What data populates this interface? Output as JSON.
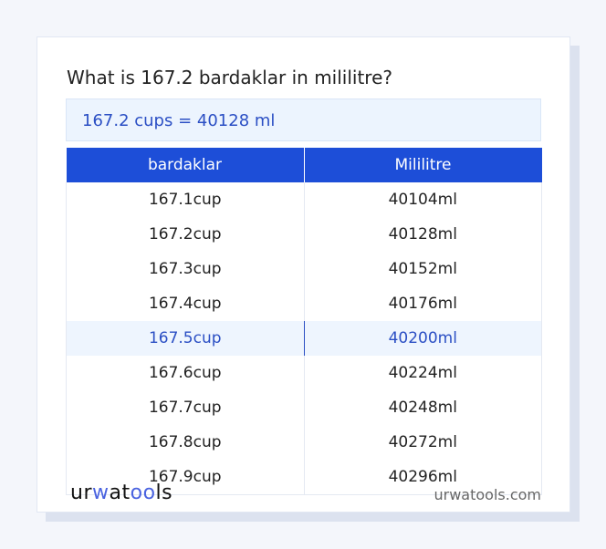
{
  "title": "What is 167.2 bardaklar in mililitre?",
  "result": "167.2 cups = 40128 ml",
  "table": {
    "headers": [
      "bardaklar",
      "Mililitre"
    ],
    "rows": [
      [
        "167.1cup",
        "40104ml"
      ],
      [
        "167.2cup",
        "40128ml"
      ],
      [
        "167.3cup",
        "40152ml"
      ],
      [
        "167.4cup",
        "40176ml"
      ],
      [
        "167.5cup",
        "40200ml"
      ],
      [
        "167.6cup",
        "40224ml"
      ],
      [
        "167.7cup",
        "40248ml"
      ],
      [
        "167.8cup",
        "40272ml"
      ],
      [
        "167.9cup",
        "40296ml"
      ]
    ],
    "highlighted_row": 4
  },
  "footer": {
    "logo": "urwatools",
    "site": "urwatools.com"
  },
  "colors": {
    "accent": "#1d4ed8",
    "result_text": "#2b4fc4"
  }
}
